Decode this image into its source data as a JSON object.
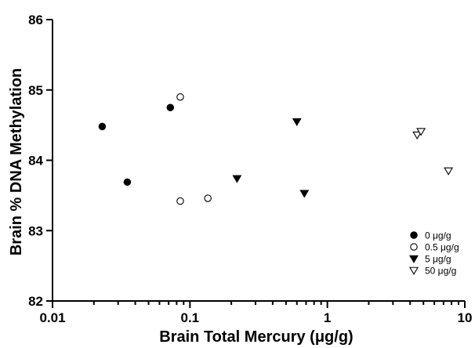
{
  "chart_data": {
    "type": "scatter",
    "title": "",
    "xlabel": "Brain Total Mercury (μg/g)",
    "ylabel": "Brain % DNA Methylation",
    "xscale": "log",
    "xlim": [
      0.01,
      10
    ],
    "ylim": [
      82,
      86
    ],
    "x_ticks": [
      {
        "value": 0.01,
        "label": "0.01"
      },
      {
        "value": 0.1,
        "label": "0.1"
      },
      {
        "value": 1,
        "label": "1"
      },
      {
        "value": 10,
        "label": "10"
      }
    ],
    "y_ticks": [
      {
        "value": 82,
        "label": "82"
      },
      {
        "value": 83,
        "label": "83"
      },
      {
        "value": 84,
        "label": "84"
      },
      {
        "value": 85,
        "label": "85"
      },
      {
        "value": 86,
        "label": "86"
      }
    ],
    "grid": false,
    "legend_position": "bottom-right",
    "series": [
      {
        "name": "0 μg/g",
        "marker": "filled-circle",
        "color": "#000000",
        "points": [
          {
            "x": 0.023,
            "y": 84.48
          },
          {
            "x": 0.035,
            "y": 83.69
          },
          {
            "x": 0.072,
            "y": 84.75
          }
        ]
      },
      {
        "name": "0.5 μg/g",
        "marker": "open-circle",
        "color": "#000000",
        "points": [
          {
            "x": 0.085,
            "y": 84.9
          },
          {
            "x": 0.085,
            "y": 83.42
          },
          {
            "x": 0.135,
            "y": 83.46
          }
        ]
      },
      {
        "name": "5 μg/g",
        "marker": "filled-triangle-down",
        "color": "#000000",
        "points": [
          {
            "x": 0.22,
            "y": 83.74
          },
          {
            "x": 0.6,
            "y": 84.55
          },
          {
            "x": 0.68,
            "y": 83.53
          }
        ]
      },
      {
        "name": "50 μg/g",
        "marker": "open-triangle-down",
        "color": "#000000",
        "points": [
          {
            "x": 4.5,
            "y": 84.36
          },
          {
            "x": 4.8,
            "y": 84.41
          },
          {
            "x": 7.6,
            "y": 83.85
          }
        ]
      }
    ]
  }
}
